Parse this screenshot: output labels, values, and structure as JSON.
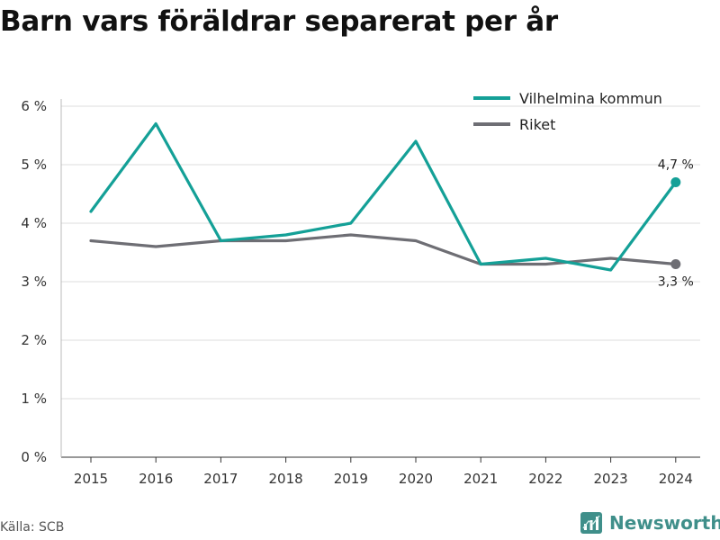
{
  "title": "Barn vars föräldrar separerat per år",
  "source": "Källa: SCB",
  "brand": {
    "name": "Newsworthy",
    "icon": "newsworthy-logo-icon",
    "color": "#3f8f8a"
  },
  "chart_data": {
    "type": "line",
    "title": "Barn vars föräldrar separerat per år",
    "xlabel": "",
    "ylabel": "",
    "x": [
      "2015",
      "2016",
      "2017",
      "2018",
      "2019",
      "2020",
      "2021",
      "2022",
      "2023",
      "2024"
    ],
    "ylim": [
      0,
      6
    ],
    "yticks": [
      0,
      1,
      2,
      3,
      4,
      5,
      6
    ],
    "ytick_labels": [
      "0 %",
      "1 %",
      "2 %",
      "3 %",
      "4 %",
      "5 %",
      "6 %"
    ],
    "grid": true,
    "legend_position": "top-right",
    "series": [
      {
        "name": "Vilhelmina kommun",
        "color": "#14a097",
        "values": [
          4.2,
          5.7,
          3.7,
          3.8,
          4.0,
          5.4,
          3.3,
          3.4,
          3.2,
          4.7
        ],
        "end_label": "4,7 %"
      },
      {
        "name": "Riket",
        "color": "#6e6e74",
        "values": [
          3.7,
          3.6,
          3.7,
          3.7,
          3.8,
          3.7,
          3.3,
          3.3,
          3.4,
          3.3
        ],
        "end_label": "3,3 %"
      }
    ]
  }
}
